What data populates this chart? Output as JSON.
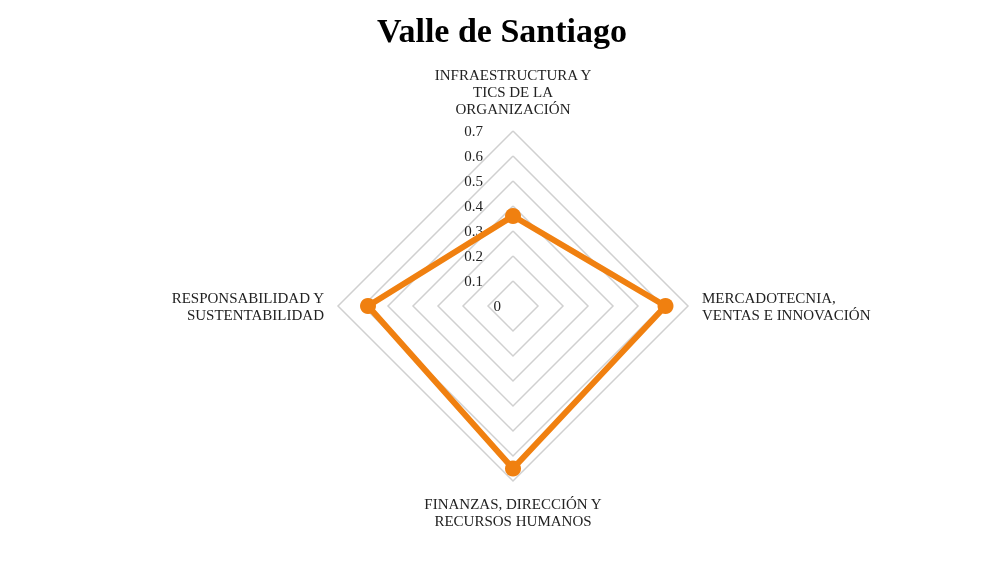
{
  "chart_data": {
    "type": "radar",
    "title": "Valle de Santiago",
    "categories": [
      "INFRAESTRUCTURA Y TICS DE LA ORGANIZACIÓN",
      "MERCADOTECNIA, VENTAS E INNOVACIÓN",
      "FINANZAS, DIRECCIÓN Y RECURSOS HUMANOS",
      "RESPONSABILIDAD Y SUSTENTABILIDAD"
    ],
    "series": [
      {
        "color": "#f08010",
        "values": [
          0.36,
          0.61,
          0.65,
          0.58
        ]
      }
    ],
    "ylim": [
      0,
      0.7
    ],
    "yticks": [
      0,
      0.1,
      0.2,
      0.3,
      0.4,
      0.5,
      0.6,
      0.7
    ],
    "grid": true,
    "marker": "circle",
    "line_style": "solid"
  }
}
